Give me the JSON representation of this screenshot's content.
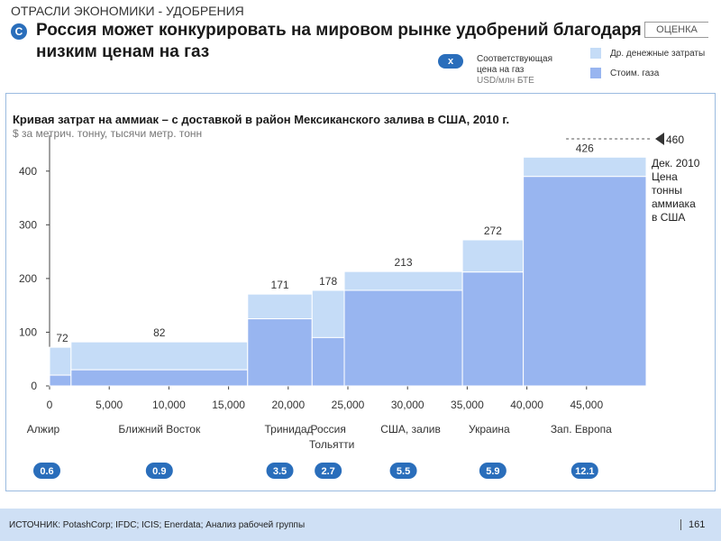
{
  "header": {
    "section": "ОТРАСЛИ ЭКОНОМИКИ - УДОБРЕНИЯ",
    "badge": "C",
    "title": "Россия может конкурировать на мировом рынке удобрений благодаря низким ценам на газ",
    "tag": "ОЦЕНКА"
  },
  "legend": {
    "x_badge": "x",
    "gas_price_line1": "Соответствующая",
    "gas_price_line2": "цена на газ",
    "gas_price_line3": "USD/млн БТЕ",
    "other_costs": "Др. денежные затраты",
    "gas_cost": "Стоим. газа"
  },
  "colors": {
    "other_costs": "#c5dcf7",
    "gas_cost": "#98b5f0",
    "badge": "#2a6ebb",
    "panel_border": "#9bbbe0",
    "footer": "#cfe0f5"
  },
  "chart_data": {
    "type": "bar",
    "subtype": "variable-width cost curve",
    "title": "Кривая затрат на аммиак – с доставкой в район Мексиканского залива в США, 2010 г.",
    "subtitle": "$ за метрич. тонну, тысячи метр. тонн",
    "xlim": [
      0,
      50000
    ],
    "ylim": [
      0,
      450
    ],
    "x_ticks": [
      0,
      5000,
      10000,
      15000,
      20000,
      25000,
      30000,
      35000,
      40000,
      45000
    ],
    "x_tick_labels": [
      "0",
      "5,000",
      "10,000",
      "15,000",
      "20,000",
      "25,000",
      "30,000",
      "35,000",
      "40,000",
      "45,000"
    ],
    "y_ticks": [
      0,
      100,
      200,
      300,
      400
    ],
    "y_tick_labels": [
      "0",
      "100",
      "200",
      "300",
      "400"
    ],
    "series_names": [
      "Стоим. газа",
      "Др. денежные затраты"
    ],
    "segments": [
      {
        "region": "Алжир",
        "x_start": 0,
        "x_end": 1800,
        "gas": 20,
        "total": 72,
        "label": "72",
        "gas_price": "0.6"
      },
      {
        "region": "Ближний  Восток",
        "x_start": 1800,
        "x_end": 16600,
        "gas": 30,
        "total": 82,
        "label": "82",
        "gas_price": "0.9"
      },
      {
        "region": "Тринидад",
        "x_start": 16600,
        "x_end": 22000,
        "gas": 125,
        "total": 171,
        "label": "171",
        "gas_price": "3.5"
      },
      {
        "region": "Россия Тольятти",
        "x_start": 22000,
        "x_end": 24700,
        "gas": 90,
        "total": 178,
        "label": "178",
        "gas_price": "2.7"
      },
      {
        "region": "США, залив",
        "x_start": 24700,
        "x_end": 34600,
        "gas": 178,
        "total": 213,
        "label": "213",
        "gas_price": "5.5"
      },
      {
        "region": "Украина",
        "x_start": 34600,
        "x_end": 39700,
        "gas": 212,
        "total": 272,
        "label": "272",
        "gas_price": "5.9"
      },
      {
        "region": "Зап. Европа",
        "x_start": 39700,
        "x_end": 50000,
        "gas": 390,
        "total": 426,
        "label": "426",
        "gas_price": "12.1"
      }
    ],
    "price_line": {
      "value": 460,
      "label": "460",
      "annotation": [
        "Дек. 2010",
        "Цена",
        "тонны",
        "аммиака",
        "в США"
      ]
    }
  },
  "footer": {
    "source": "ИСТОЧНИК: PotashCorp; IFDC; ICIS; Enerdata; Анализ рабочей группы",
    "page": "161"
  }
}
